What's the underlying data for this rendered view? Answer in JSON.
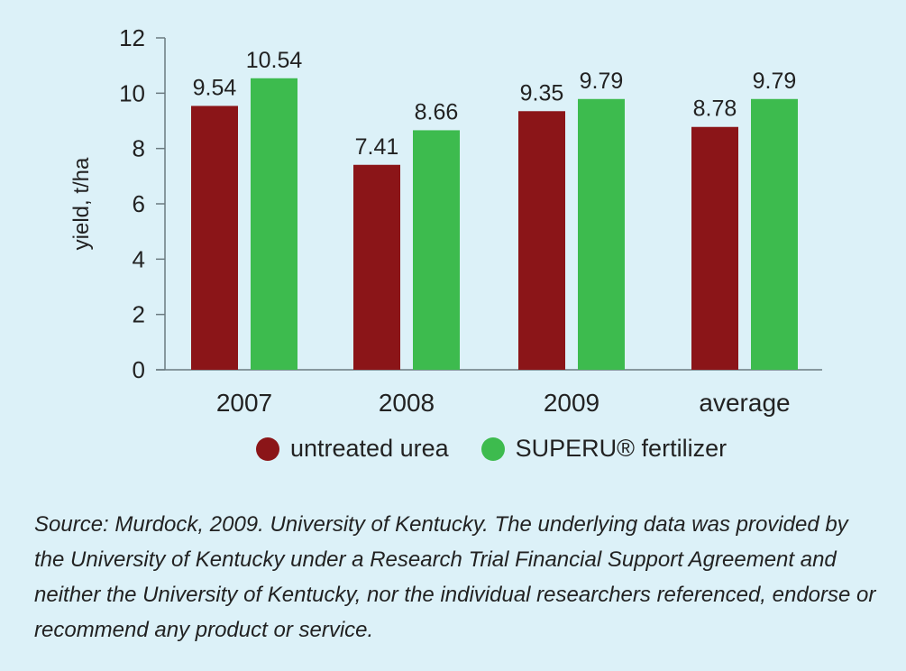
{
  "chart_data": {
    "type": "bar",
    "categories": [
      "2007",
      "2008",
      "2009",
      "average"
    ],
    "series": [
      {
        "name": "untreated urea",
        "values": [
          9.54,
          7.41,
          9.35,
          8.78
        ],
        "labels": [
          "9.54",
          "7.41",
          "9.35",
          "8.78"
        ],
        "color": "#8b1518"
      },
      {
        "name": "SUPERU® fertilizer",
        "values": [
          10.54,
          8.66,
          9.79,
          9.79
        ],
        "labels": [
          "10.54",
          "8.66",
          "9.79",
          "9.79"
        ],
        "color": "#3dbb4e"
      }
    ],
    "ylabel": "yield, t/ha",
    "xlabel": "",
    "ylim": [
      0,
      12
    ],
    "yticks": [
      "0",
      "2",
      "4",
      "6",
      "8",
      "10",
      "12"
    ],
    "grid": false,
    "legend_position": "bottom"
  },
  "legend": {
    "item1": "untreated urea",
    "item2": "SUPERU® fertilizer"
  },
  "source_note": "Source: Murdock, 2009. University of Kentucky. The underlying data was provided by the University of Kentucky under a Research Trial Financial Support Agreement and neither the University of Kentucky, nor the individual researchers referenced, endorse or recommend any product or service."
}
